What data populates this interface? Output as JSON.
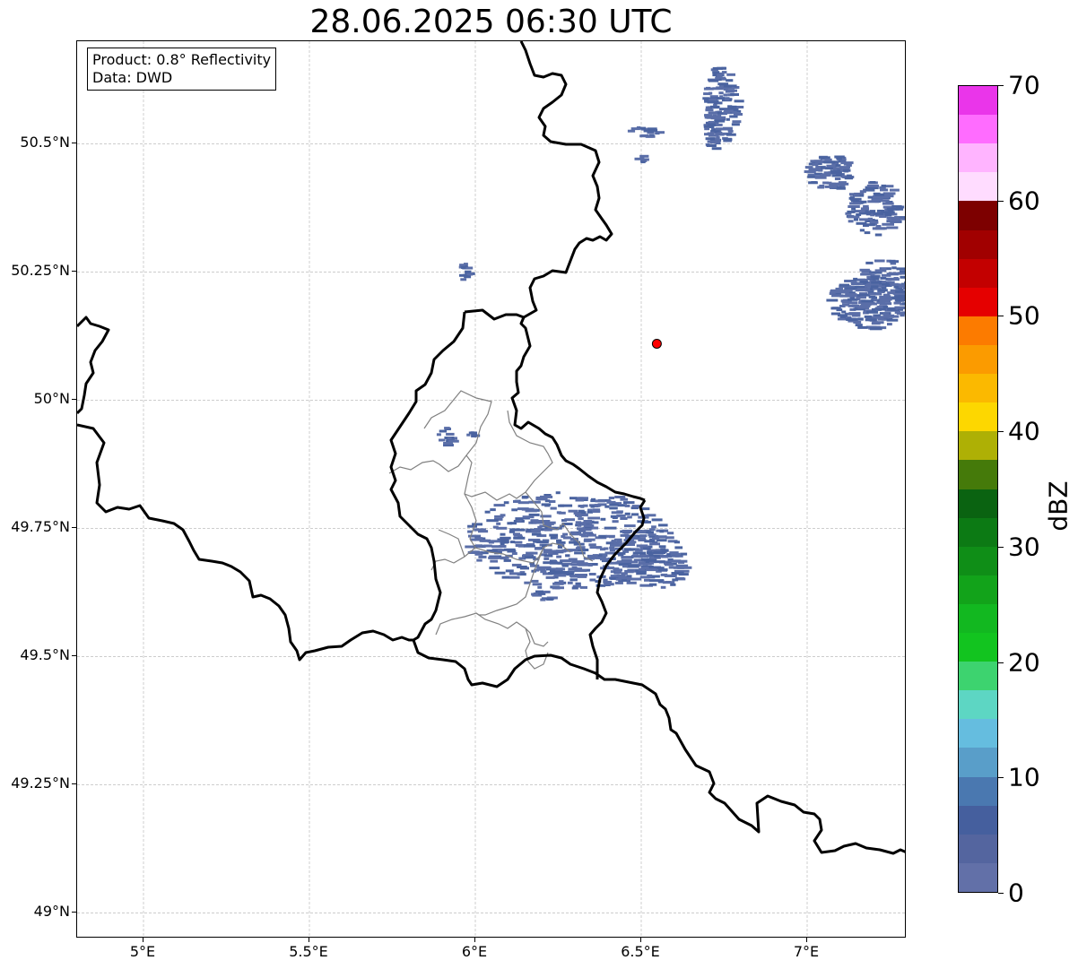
{
  "title": "28.06.2025 06:30 UTC",
  "info": {
    "product": "Product: 0.8° Reflectivity",
    "data": "Data: DWD"
  },
  "axes": {
    "lon_range": [
      4.8,
      7.3
    ],
    "lat_range": [
      48.95,
      50.7
    ],
    "lat_ticks": [
      {
        "value": 50.5,
        "label": "50.5°N"
      },
      {
        "value": 50.25,
        "label": "50.25°N"
      },
      {
        "value": 50.0,
        "label": "50°N"
      },
      {
        "value": 49.75,
        "label": "49.75°N"
      },
      {
        "value": 49.5,
        "label": "49.5°N"
      },
      {
        "value": 49.25,
        "label": "49.25°N"
      },
      {
        "value": 49.0,
        "label": "49°N"
      }
    ],
    "lon_ticks": [
      {
        "value": 5.0,
        "label": "5°E"
      },
      {
        "value": 5.5,
        "label": "5.5°E"
      },
      {
        "value": 6.0,
        "label": "6°E"
      },
      {
        "value": 6.5,
        "label": "6.5°E"
      },
      {
        "value": 7.0,
        "label": "7°E"
      }
    ]
  },
  "radar_site": {
    "lon": 6.547,
    "lat": 50.11,
    "color": "#ff0000"
  },
  "colorbar": {
    "label": "dBZ",
    "min": 0,
    "max": 70,
    "step": 2.5,
    "colors": [
      "#6270a8",
      "#54659f",
      "#455f9e",
      "#4a78b0",
      "#599ec9",
      "#65bddf",
      "#5dd6c3",
      "#3dd36f",
      "#12c41f",
      "#12b820",
      "#12a31a",
      "#0f8e17",
      "#0c7a14",
      "#0a6311",
      "#457a0a",
      "#aeb005",
      "#fdd700",
      "#fbb900",
      "#fb9b00",
      "#fc7b00",
      "#e50000",
      "#c30000",
      "#a10000",
      "#7d0000",
      "#ffdcff",
      "#ffb4ff",
      "#ff6cff",
      "#ea35ea"
    ],
    "ticks": [
      {
        "value": 0,
        "label": "0"
      },
      {
        "value": 10,
        "label": "10"
      },
      {
        "value": 20,
        "label": "20"
      },
      {
        "value": 30,
        "label": "30"
      },
      {
        "value": 40,
        "label": "40"
      },
      {
        "value": 50,
        "label": "50"
      },
      {
        "value": 60,
        "label": "60"
      },
      {
        "value": 70,
        "label": "70"
      }
    ]
  },
  "colors": {
    "border": "#000000",
    "admin_border": "#808080",
    "grid": "#b0b0b0",
    "echo_low": "#5a6ea8",
    "echo_mid": "#4a63a0"
  }
}
